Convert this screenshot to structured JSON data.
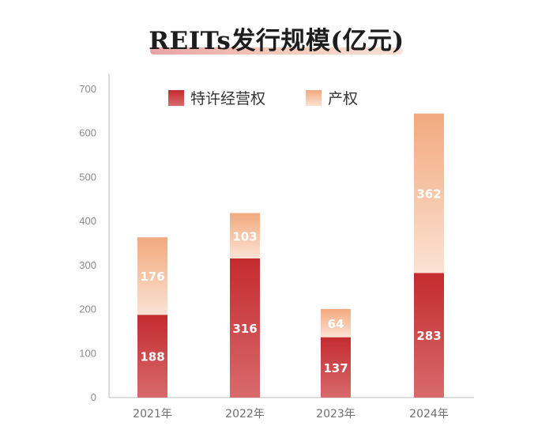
{
  "chart_data": {
    "type": "bar",
    "stacked": true,
    "title": "REITs发行规模(亿元)",
    "categories": [
      "2021年",
      "2022年",
      "2023年",
      "2024年"
    ],
    "series": [
      {
        "name": "特许经营权",
        "values": [
          188,
          316,
          137,
          283
        ],
        "color_top": "#c42b2f",
        "color_bottom": "#d86a6c"
      },
      {
        "name": "产权",
        "values": [
          176,
          103,
          64,
          362
        ],
        "color_top": "#f2a97d",
        "color_bottom": "#fbe2d3"
      }
    ],
    "y_ticks": [
      0,
      100,
      200,
      300,
      400,
      500,
      600,
      700
    ],
    "ylim": [
      0,
      700
    ],
    "legend": "top",
    "grid": false
  }
}
